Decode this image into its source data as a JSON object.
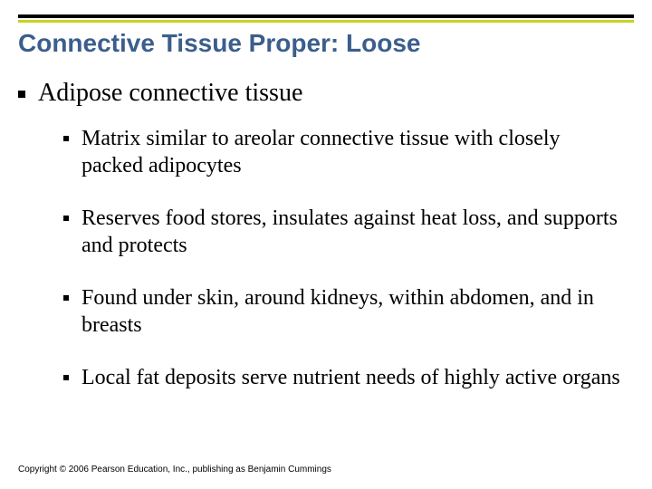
{
  "accent_color": "#c6d420",
  "title_color": "#3b5e8c",
  "rule_color": "#000000",
  "background_color": "#ffffff",
  "title": "Connective Tissue Proper: Loose",
  "level1": {
    "bullet_color": "#000000",
    "font_family": "Times New Roman",
    "font_size_pt": 28,
    "text": "Adipose connective tissue"
  },
  "level2": {
    "bullet_color": "#000000",
    "font_family": "Times New Roman",
    "font_size_pt": 24,
    "items": [
      "Matrix similar to areolar connective tissue with closely packed adipocytes",
      "Reserves food stores, insulates against heat loss, and supports and protects",
      "Found under skin, around kidneys, within abdomen, and in breasts",
      "Local fat deposits serve nutrient needs of highly active organs"
    ]
  },
  "footer": "Copyright © 2006 Pearson Education, Inc., publishing as Benjamin Cummings"
}
